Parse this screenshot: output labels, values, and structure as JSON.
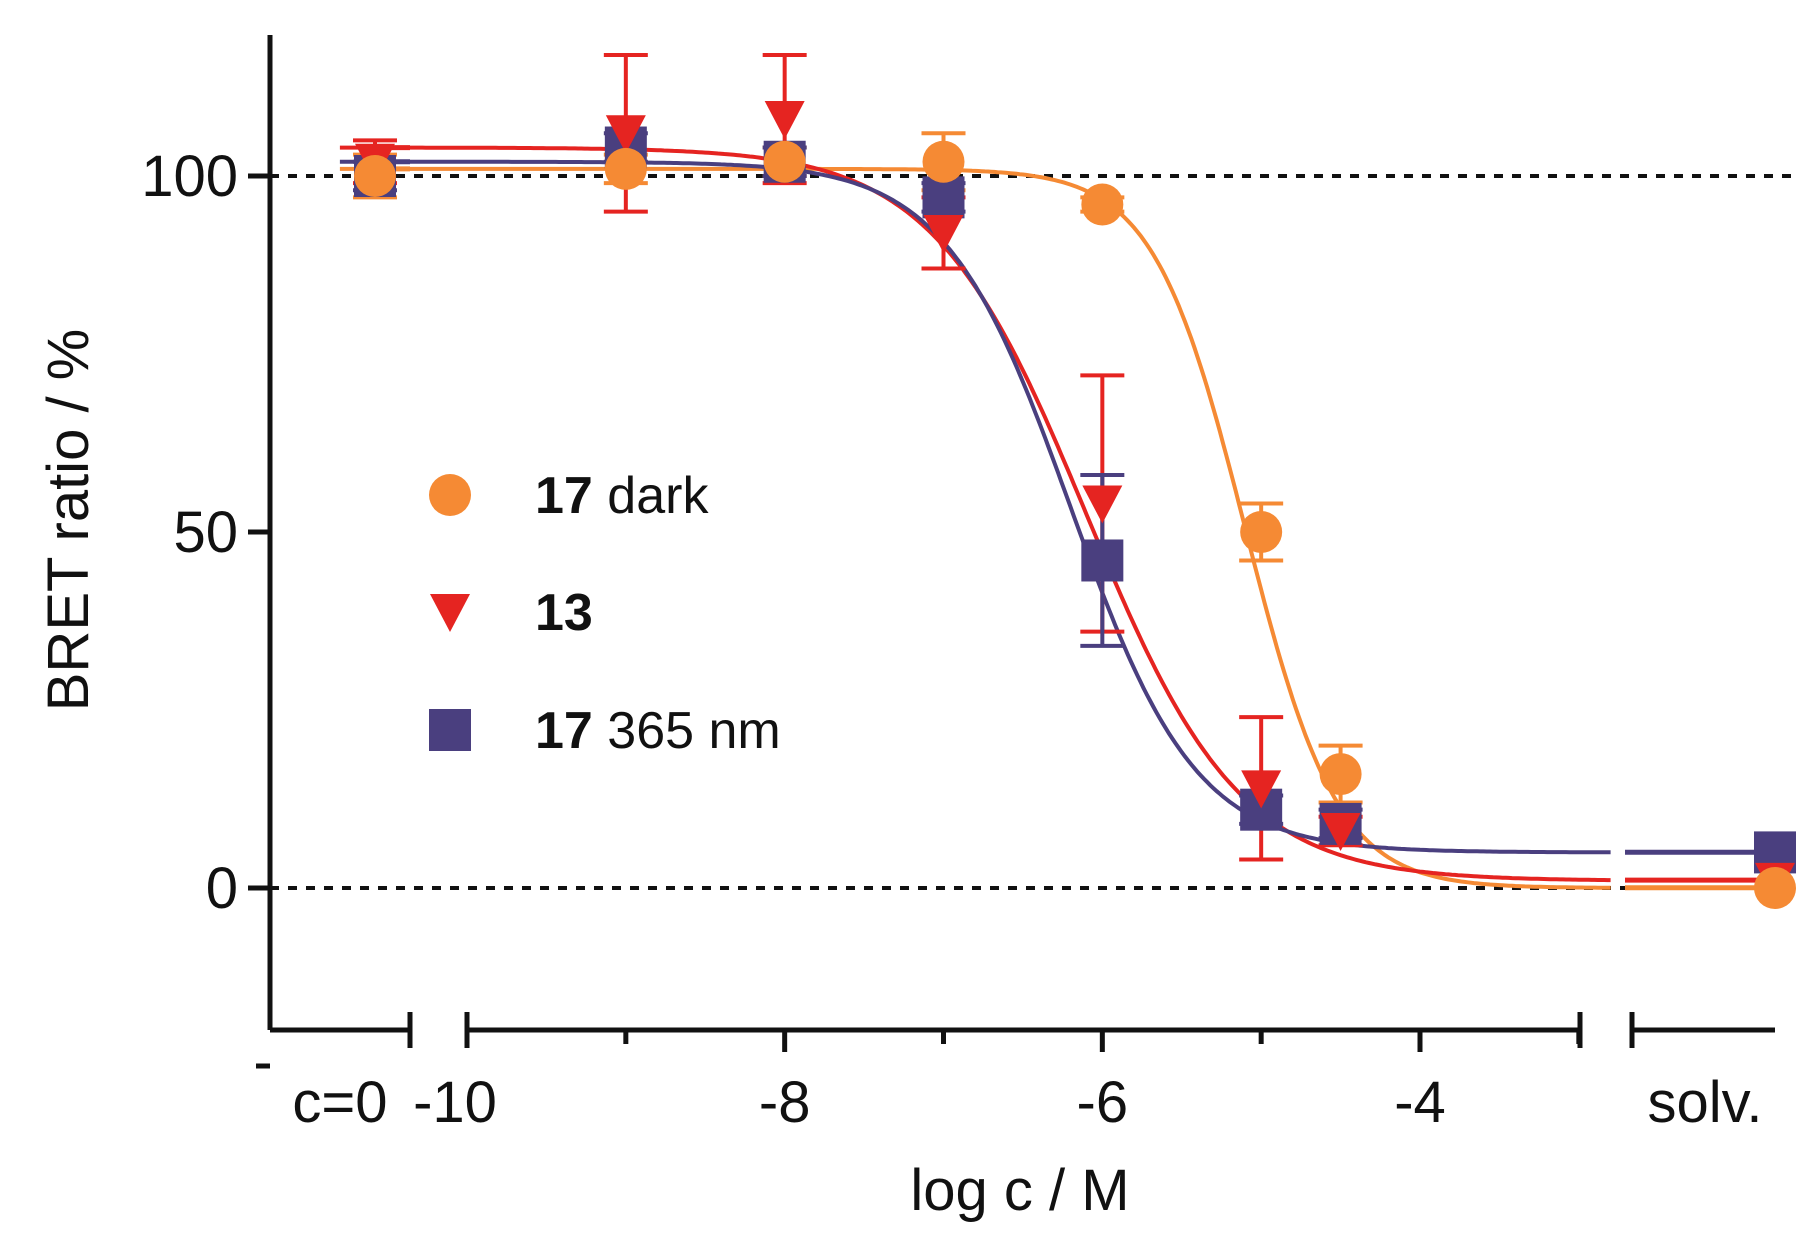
{
  "chart_data": {
    "type": "scatter",
    "title": "",
    "xlabel": "log c / M",
    "ylabel": "BRET ratio / %",
    "ylim": [
      -20,
      120
    ],
    "xlim": [
      -10.8,
      -2.0
    ],
    "grid": false,
    "reference_lines": [
      0,
      100
    ],
    "x_ticks": [
      {
        "label": "c=0",
        "position": "c=0"
      },
      {
        "label": "-10",
        "value": -10
      },
      {
        "label": "-8",
        "value": -8
      },
      {
        "label": "-6",
        "value": -6
      },
      {
        "label": "-4",
        "value": -4
      },
      {
        "label": "solv.",
        "position": "solv."
      }
    ],
    "y_ticks": [
      {
        "label": "0",
        "value": 0
      },
      {
        "label": "50",
        "value": 50
      },
      {
        "label": "100",
        "value": 100
      }
    ],
    "series": [
      {
        "name": "17 dark",
        "name_bold": "17",
        "name_rest": " dark",
        "marker": "circle",
        "color": "#f58a34",
        "points": [
          {
            "x": "c=0",
            "y": 100,
            "err": 3
          },
          {
            "x": -9,
            "y": 101,
            "err": 2
          },
          {
            "x": -8,
            "y": 102,
            "err": 2
          },
          {
            "x": -7,
            "y": 102,
            "err": 4
          },
          {
            "x": -6,
            "y": 96,
            "err": 1
          },
          {
            "x": -5,
            "y": 50,
            "err": 4
          },
          {
            "x": -4.5,
            "y": 16,
            "err": 4
          },
          {
            "x": "solv.",
            "y": 0,
            "err": 0
          }
        ],
        "fit": {
          "top": 101,
          "bottom": 0,
          "logIC50": -5.1,
          "hill": 1.5
        }
      },
      {
        "name": "13",
        "name_bold": "13",
        "name_rest": "",
        "marker": "triangle-down",
        "color": "#e52421",
        "points": [
          {
            "x": "c=0",
            "y": 102,
            "err": 3
          },
          {
            "x": -9,
            "y": 106,
            "err": 11
          },
          {
            "x": -8,
            "y": 108,
            "err": 9
          },
          {
            "x": -7,
            "y": 92,
            "err": 5
          },
          {
            "x": -6,
            "y": 54,
            "err": 18
          },
          {
            "x": -5,
            "y": 14,
            "err": 10
          },
          {
            "x": -4.5,
            "y": 8,
            "err": 2
          },
          {
            "x": "solv.",
            "y": 1,
            "err": 0
          }
        ],
        "fit": {
          "top": 104,
          "bottom": 1,
          "logIC50": -6.1,
          "hill": 0.9
        }
      },
      {
        "name": "17 365 nm",
        "name_bold": "17",
        "name_rest": " 365 nm",
        "marker": "square",
        "color": "#4a3f7f",
        "points": [
          {
            "x": "c=0",
            "y": 100,
            "err": 2
          },
          {
            "x": -9,
            "y": 104,
            "err": 2
          },
          {
            "x": -8,
            "y": 102,
            "err": 2
          },
          {
            "x": -7,
            "y": 97,
            "err": 2
          },
          {
            "x": -6,
            "y": 46,
            "err": 12
          },
          {
            "x": -5,
            "y": 11,
            "err": 2
          },
          {
            "x": -4.5,
            "y": 9,
            "err": 2
          },
          {
            "x": "solv.",
            "y": 5,
            "err": 0
          }
        ],
        "fit": {
          "top": 102,
          "bottom": 5,
          "logIC50": -6.2,
          "hill": 1.1
        }
      }
    ],
    "legend": {
      "position": "center-left"
    }
  }
}
